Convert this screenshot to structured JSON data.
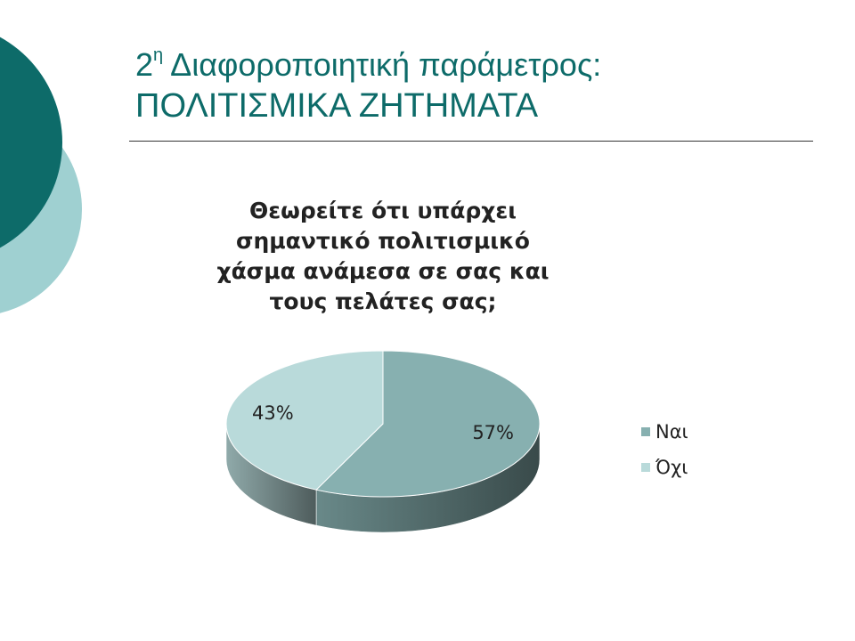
{
  "slide": {
    "title_prefix": "2",
    "title_superscript": "η",
    "title_rest": " Διαφοροποιητική παράμετρος:",
    "subtitle": "ΠΟΛΙΤΙΣΜΙΚΑ ΖΗΤΗΜΑΤΑ"
  },
  "chart_data": {
    "type": "pie",
    "title": "Θεωρείτε ότι υπάρχει σημαντικό πολιτισμικό χάσμα ανάμεσα σε σας και τους πελάτες σας;",
    "categories": [
      "Ναι",
      "Όχι"
    ],
    "values": [
      57,
      43
    ],
    "data_labels": [
      "57%",
      "43%"
    ],
    "colors": [
      "#87b0b0",
      "#b9dada"
    ],
    "legend_position": "right",
    "style": "3d"
  },
  "colors": {
    "accent_dark": "#0d6b69",
    "accent_light": "#9fd0d1"
  }
}
